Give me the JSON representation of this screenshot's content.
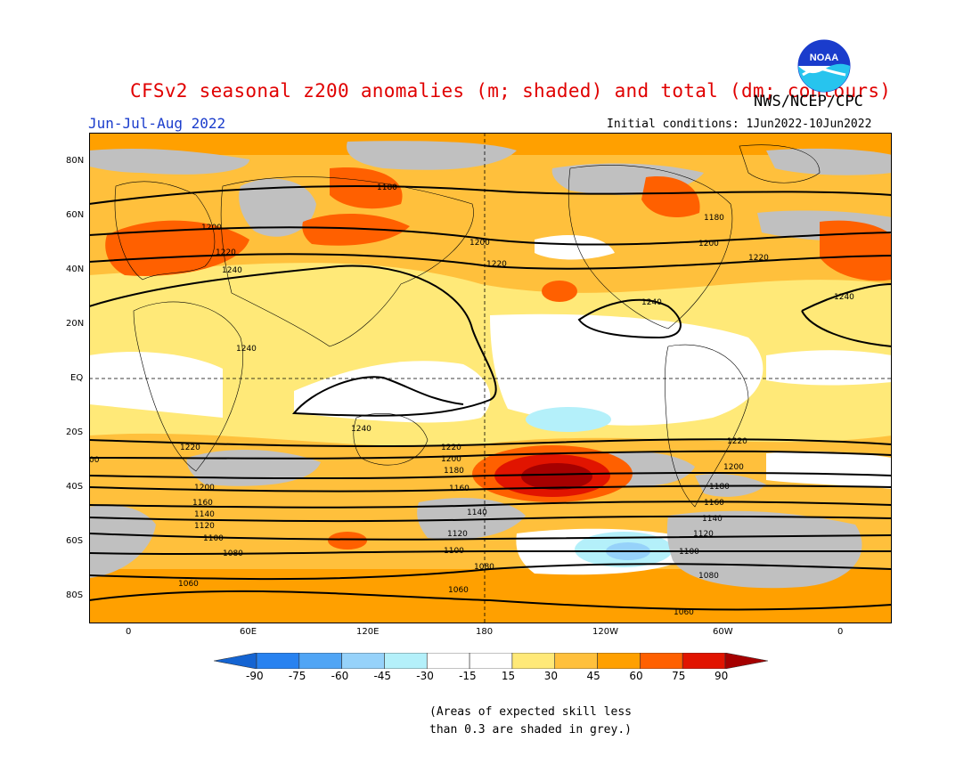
{
  "header": {
    "title": "CFSv2 seasonal z200 anomalies (m; shaded) and total (dm; contours)",
    "org": "NWS/NCEP/CPC",
    "season": "Jun-Jul-Aug 2022",
    "initial_conditions": "Initial conditions: 1Jun2022-10Jun2022",
    "logo_text": "NOAA"
  },
  "axes": {
    "lat_labels": [
      "80N",
      "60N",
      "40N",
      "20N",
      "EQ",
      "20S",
      "40S",
      "60S",
      "80S"
    ],
    "lat_values": [
      80,
      60,
      40,
      20,
      0,
      -20,
      -40,
      -60,
      -80
    ],
    "lon_labels": [
      "0",
      "60E",
      "120E",
      "180",
      "120W",
      "60W",
      "0"
    ],
    "lon_values": [
      0,
      60,
      120,
      180,
      240,
      300,
      360
    ]
  },
  "colorbar": {
    "labels": [
      "-90",
      "-75",
      "-60",
      "-45",
      "-30",
      "-15",
      "15",
      "30",
      "45",
      "60",
      "75",
      "90"
    ],
    "colors": [
      "#1464d2",
      "#2882f0",
      "#50a5f5",
      "#96d2fa",
      "#b4f0fa",
      "#ffffff",
      "#ffffff",
      "#ffe978",
      "#ffc03c",
      "#ffa000",
      "#ff6000",
      "#e11400",
      "#a50000"
    ]
  },
  "shading_colors": {
    "light_yellow": "#ffe978",
    "light_orange": "#ffc03c",
    "orange": "#ffa000",
    "dark_orange": "#ff6000",
    "red": "#e11400",
    "dark_red": "#a50000",
    "light_blue": "#b4f0fa",
    "blue": "#96d2fa",
    "grey": "#c0c0c0",
    "white": "#ffffff"
  },
  "contour_labels": [
    "1180",
    "1200",
    "1220",
    "1240",
    "1240",
    "1200",
    "1220",
    "1180",
    "1200",
    "1220",
    "1240",
    "1240",
    "1240",
    "1220",
    "1220",
    "1200",
    "1180",
    "1160",
    "1140",
    "1120",
    "1100",
    "1080",
    "1060",
    "1220",
    "1200",
    "1180",
    "1160",
    "1140",
    "1120",
    "1100",
    "1080",
    "1060",
    "1220",
    "1200",
    "1180",
    "1160",
    "1140",
    "1120",
    "1100",
    "1080",
    "1060",
    "00"
  ],
  "footnote": {
    "line1": "(Areas of expected skill less",
    "line2": "than 0.3 are shaded in grey.)"
  }
}
